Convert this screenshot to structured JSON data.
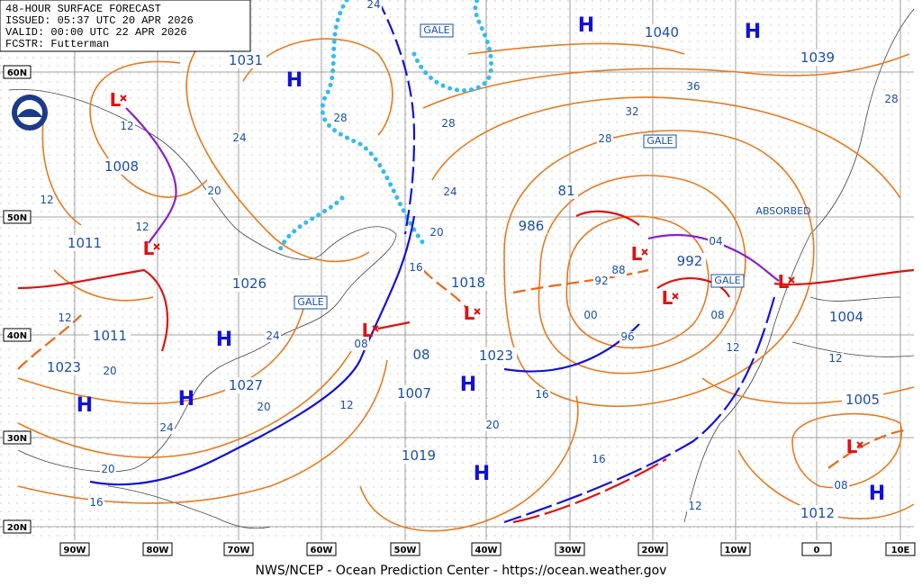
{
  "header": {
    "title": "48-HOUR SURFACE FORECAST",
    "issued": "ISSUED: 05:37 UTC 20 APR 2026",
    "valid": "VALID:  00:00 UTC 22 APR 2026",
    "forecaster": "FCSTR:  Futterman"
  },
  "lat_labels": [
    "60N",
    "50N",
    "40N",
    "30N",
    "20N"
  ],
  "lon_labels": [
    "90W",
    "80W",
    "70W",
    "60W",
    "50W",
    "40W",
    "30W",
    "20W",
    "10W",
    "0",
    "10E"
  ],
  "centers": [
    "H",
    "1040",
    "H",
    "1039",
    "1031",
    "H",
    "L",
    "1008",
    "1011",
    "L",
    "1011",
    "1023",
    "H",
    "H",
    "H",
    "1026",
    "1027",
    "L",
    "1018",
    "L",
    "1023",
    "08",
    "1007",
    "H",
    "1019",
    "H",
    "81",
    "986",
    "L",
    "992",
    "L",
    "L",
    "1004",
    "1005",
    "L",
    "1012",
    "H"
  ],
  "isobars": [
    "24",
    "28",
    "28",
    "24",
    "20",
    "16",
    "12",
    "12",
    "12",
    "12",
    "24",
    "20",
    "24",
    "20",
    "20",
    "24",
    "20",
    "16",
    "12",
    "08",
    "32",
    "36",
    "28",
    "28",
    "92",
    "88",
    "04",
    "00",
    "96",
    "08",
    "12",
    "12",
    "16",
    "20",
    "16",
    "12",
    "08"
  ],
  "warnings": [
    "GALE",
    "GALE",
    "GALE",
    "GALE",
    "ABSORBED"
  ],
  "footer": "NWS/NCEP - Ocean Prediction Center - https://ocean.weather.gov"
}
